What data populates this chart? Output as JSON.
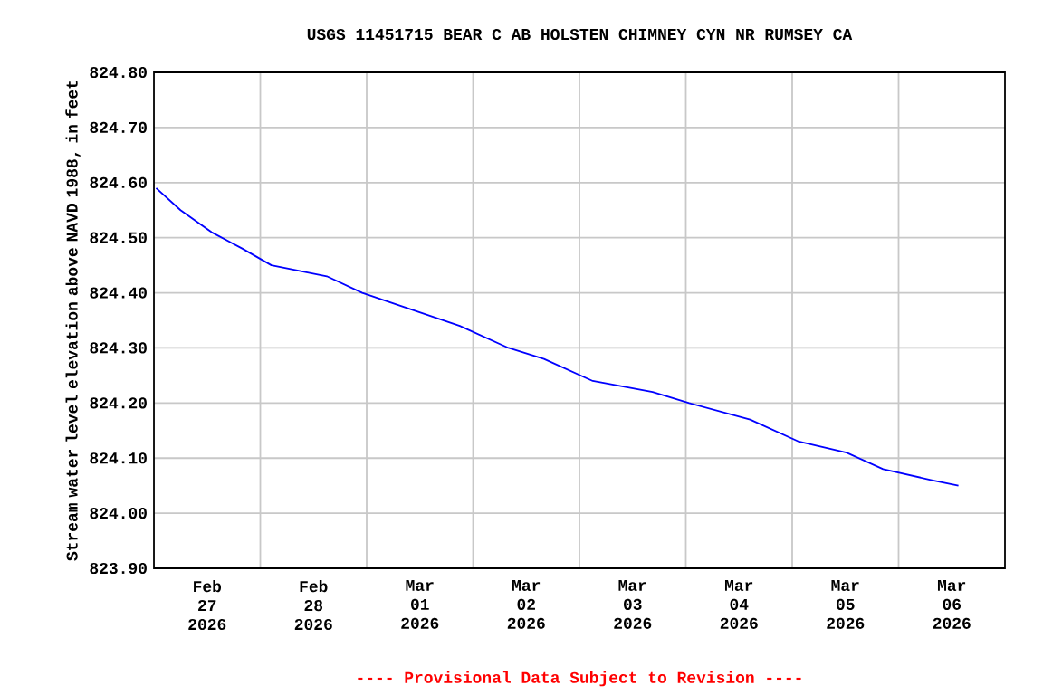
{
  "chart_data": {
    "type": "line",
    "title": "USGS 11451715 BEAR C AB HOLSTEN CHIMNEY CYN NR RUMSEY CA",
    "ylabel": "Stream water level elevation above NAVD 1988, in feet",
    "annotations": [
      "---- Provisional Data Subject to Revision ----"
    ],
    "x": [
      "2026-02-27T00:30",
      "2026-02-27T06:00",
      "2026-02-27T13:00",
      "2026-02-27T20:00",
      "2026-02-28T02:30",
      "2026-02-28T15:00",
      "2026-02-28T23:00",
      "2026-03-01T10:00",
      "2026-03-01T21:00",
      "2026-03-02T08:00",
      "2026-03-02T16:00",
      "2026-03-03T03:00",
      "2026-03-03T16:30",
      "2026-03-04T00:45",
      "2026-03-04T14:30",
      "2026-03-05T01:30",
      "2026-03-05T12:15",
      "2026-03-05T20:30",
      "2026-03-06T07:30",
      "2026-03-06T13:30"
    ],
    "series": [
      {
        "color": "#0000ff",
        "values": [
          824.59,
          824.55,
          824.51,
          824.48,
          824.45,
          824.43,
          824.4,
          824.37,
          824.34,
          824.3,
          824.28,
          824.24,
          824.22,
          824.2,
          824.17,
          824.13,
          824.11,
          824.08,
          824.06,
          824.05
        ]
      }
    ],
    "xlim": [
      "2026-02-27T00:00",
      "2026-03-07T00:00"
    ],
    "xticks": [
      {
        "value": "2026-02-27T12:00",
        "label": "Feb 27 2026"
      },
      {
        "value": "2026-02-28T12:00",
        "label": "Feb 28 2026"
      },
      {
        "value": "2026-03-01T12:00",
        "label": "Mar 01 2026"
      },
      {
        "value": "2026-03-02T12:00",
        "label": "Mar 02 2026"
      },
      {
        "value": "2026-03-03T12:00",
        "label": "Mar 03 2026"
      },
      {
        "value": "2026-03-04T12:00",
        "label": "Mar 04 2026"
      },
      {
        "value": "2026-03-05T12:00",
        "label": "Mar 05 2026"
      },
      {
        "value": "2026-03-06T12:00",
        "label": "Mar 06 2026"
      },
      {
        "value": "2026-02-28T00:00",
        "label": null
      },
      {
        "value": "2026-03-01T00:00",
        "label": null
      },
      {
        "value": "2026-03-02T00:00",
        "label": null
      },
      {
        "value": "2026-03-03T00:00",
        "label": null
      },
      {
        "value": "2026-03-04T00:00",
        "label": null
      },
      {
        "value": "2026-03-05T00:00",
        "label": null
      },
      {
        "value": "2026-03-06T00:00",
        "label": null
      }
    ],
    "ylim": [
      823.9,
      824.8
    ],
    "yticks": [
      {
        "value": 823.9,
        "label": "823.90"
      },
      {
        "value": 824.0,
        "label": "824.00"
      },
      {
        "value": 824.1,
        "label": "824.10"
      },
      {
        "value": 824.2,
        "label": "824.20"
      },
      {
        "value": 824.3,
        "label": "824.30"
      },
      {
        "value": 824.4,
        "label": "824.40"
      },
      {
        "value": 824.5,
        "label": "824.50"
      },
      {
        "value": 824.6,
        "label": "824.60"
      },
      {
        "value": 824.7,
        "label": "824.70"
      },
      {
        "value": 824.8,
        "label": "824.80"
      }
    ],
    "grid": true,
    "marker": "none",
    "line_style": "solid"
  }
}
